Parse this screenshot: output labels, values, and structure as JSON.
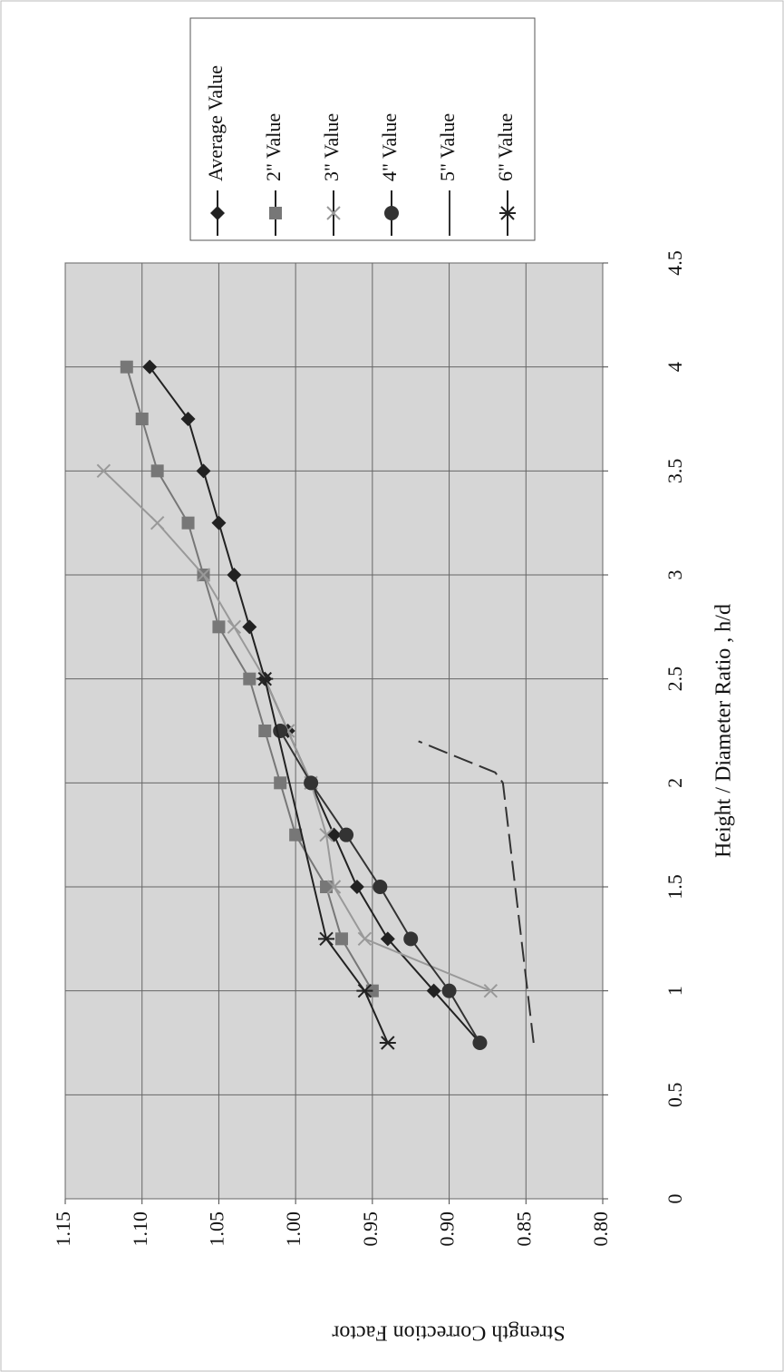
{
  "chart_data": {
    "type": "line",
    "xlabel": "Height / Diameter Ratio , h/d",
    "ylabel": "Strength Correction Factor",
    "xlim": [
      0,
      4.5
    ],
    "xticks": [
      0,
      0.5,
      1,
      1.5,
      2,
      2.5,
      3,
      3.5,
      4,
      4.5
    ],
    "ylim": [
      0.8,
      1.15
    ],
    "yticks": [
      {
        "value": 0.8,
        "label": "0.80"
      },
      0.85,
      {
        "value": 0.9,
        "label": "0.90"
      },
      0.95,
      {
        "value": 1.0,
        "label": "1.00"
      },
      1.05,
      {
        "value": 1.1,
        "label": "1.10"
      },
      1.15
    ],
    "grid": true,
    "legend": "right",
    "series": [
      {
        "name": "Average Value",
        "color": "#222222",
        "marker": "diamond",
        "dash": false,
        "x": [
          0.75,
          1,
          1.25,
          1.5,
          1.75,
          2,
          2.25,
          2.5,
          2.75,
          3,
          3.25,
          3.5,
          3.75,
          4
        ],
        "values": [
          0.88,
          0.91,
          0.94,
          0.96,
          0.975,
          0.99,
          1.005,
          1.02,
          1.03,
          1.04,
          1.05,
          1.06,
          1.07,
          1.095
        ]
      },
      {
        "name": "2\" Value",
        "color": "#777777",
        "marker": "square",
        "dash": false,
        "x": [
          1,
          1.25,
          1.5,
          1.75,
          2,
          2.25,
          2.5,
          2.75,
          3,
          3.25,
          3.5,
          3.75,
          4
        ],
        "values": [
          0.95,
          0.97,
          0.98,
          1.0,
          1.01,
          1.02,
          1.03,
          1.05,
          1.06,
          1.07,
          1.09,
          1.1,
          1.11
        ]
      },
      {
        "name": "3\" Value",
        "color": "#999999",
        "marker": "cross",
        "dash": false,
        "x": [
          1,
          1.25,
          1.5,
          1.75,
          2,
          2.25,
          2.5,
          2.75,
          3,
          3.25,
          3.5
        ],
        "values": [
          0.873,
          0.955,
          0.975,
          0.98,
          0.99,
          1.005,
          1.02,
          1.04,
          1.06,
          1.09,
          1.125
        ]
      },
      {
        "name": "4\" Value",
        "color": "#333333",
        "marker": "circle",
        "dash": false,
        "x": [
          0.75,
          1,
          1.25,
          1.5,
          1.75,
          2,
          2.25
        ],
        "values": [
          0.88,
          0.9,
          0.925,
          0.945,
          0.967,
          0.99,
          1.01
        ]
      },
      {
        "name": "5\" Value",
        "color": "#bbbbbb",
        "marker": "none",
        "dash": true,
        "x": [
          0.75,
          2,
          2.05,
          2.2
        ],
        "values": [
          0.845,
          0.865,
          0.87,
          0.92
        ]
      },
      {
        "name": "6\" Value",
        "color": "#222222",
        "marker": "asterisk",
        "dash": false,
        "x": [
          0.75,
          1,
          1.25,
          2.5
        ],
        "values": [
          0.94,
          0.955,
          0.98,
          1.02
        ]
      }
    ]
  }
}
